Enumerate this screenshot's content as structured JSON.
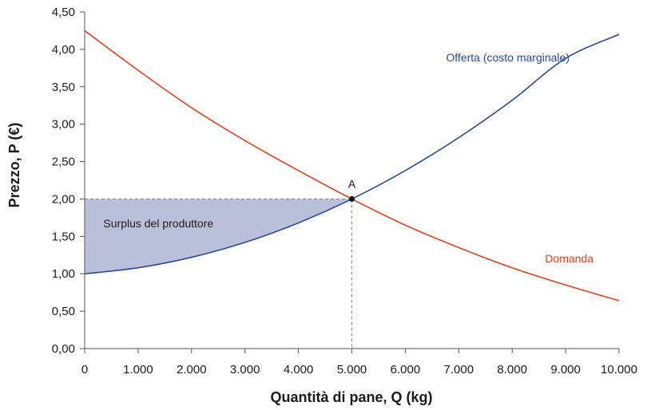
{
  "chart_data": {
    "type": "line",
    "xlabel": "Quantità di pane, Q (kg)",
    "ylabel": "Prezzo, P (€)",
    "xlim": [
      0,
      10000
    ],
    "ylim": [
      0,
      4.5
    ],
    "x_ticks": [
      0,
      1000,
      2000,
      3000,
      4000,
      5000,
      6000,
      7000,
      8000,
      9000,
      10000
    ],
    "x_tick_labels": [
      "0",
      "1.000",
      "2.000",
      "3.000",
      "4.000",
      "5.000",
      "6.000",
      "7.000",
      "8.000",
      "9.000",
      "10.000"
    ],
    "y_ticks": [
      0,
      0.5,
      1,
      1.5,
      2,
      2.5,
      3,
      3.5,
      4,
      4.5
    ],
    "y_tick_labels": [
      "0,00",
      "0,50",
      "1,00",
      "1,50",
      "2,00",
      "2,50",
      "3,00",
      "3,50",
      "4,00",
      "4,50"
    ],
    "grid": false,
    "series": [
      {
        "name": "Offerta (costo marginale)",
        "color": "#2b4a9b",
        "x": [
          0,
          1000,
          2000,
          3000,
          4000,
          5000,
          6000,
          7000,
          8000,
          9000,
          10000
        ],
        "y": [
          1.0,
          1.08,
          1.22,
          1.42,
          1.68,
          2.0,
          2.38,
          2.82,
          3.32,
          3.88,
          4.2
        ]
      },
      {
        "name": "Domanda",
        "color": "#e0401f",
        "x": [
          0,
          1000,
          2000,
          3000,
          4000,
          5000,
          6000,
          7000,
          8000,
          9000,
          10000
        ],
        "y": [
          4.25,
          3.72,
          3.22,
          2.78,
          2.38,
          2.0,
          1.65,
          1.35,
          1.08,
          0.85,
          0.64
        ]
      }
    ],
    "equilibrium": {
      "label": "A",
      "x": 5000,
      "y": 2.0
    },
    "shaded_area": {
      "label": "Surplus del produttore",
      "color": "#b6bdd8",
      "x_from": 0,
      "x_to": 5000,
      "upper_price": 2.0
    }
  }
}
